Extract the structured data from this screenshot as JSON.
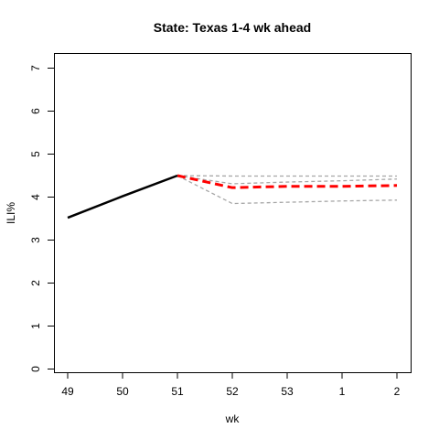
{
  "chart_data": {
    "type": "line",
    "title": "State: Texas 1-4 wk ahead",
    "xlabel": "wk",
    "ylabel": "ILI%",
    "x_categories": [
      "49",
      "50",
      "51",
      "52",
      "53",
      "1",
      "2"
    ],
    "yticks": [
      0,
      1,
      2,
      3,
      4,
      5,
      6,
      7
    ],
    "ylim": [
      0,
      7
    ],
    "grid": false,
    "series": [
      {
        "role": "observed",
        "color": "#000000",
        "style": "solid",
        "points": [
          [
            "49",
            3.52
          ],
          [
            "50",
            4.02
          ],
          [
            "51",
            4.5
          ]
        ]
      },
      {
        "role": "forecast-point",
        "color": "#ff0000",
        "style": "dashed",
        "points": [
          [
            "51",
            4.5
          ],
          [
            "52",
            4.22
          ],
          [
            "53",
            4.25
          ],
          [
            "1",
            4.25
          ],
          [
            "2",
            4.27
          ]
        ]
      },
      {
        "role": "forecast-upper",
        "color": "#a6a6a6",
        "style": "dashed",
        "points": [
          [
            "51",
            4.5
          ],
          [
            "52",
            4.49
          ],
          [
            "53",
            4.49
          ],
          [
            "1",
            4.49
          ],
          [
            "2",
            4.49
          ]
        ]
      },
      {
        "role": "forecast-mid",
        "color": "#a6a6a6",
        "style": "dashed",
        "points": [
          [
            "51",
            4.5
          ],
          [
            "52",
            4.31
          ],
          [
            "53",
            4.35
          ],
          [
            "1",
            4.38
          ],
          [
            "2",
            4.42
          ]
        ]
      },
      {
        "role": "forecast-lower",
        "color": "#a6a6a6",
        "style": "dashed",
        "points": [
          [
            "51",
            4.5
          ],
          [
            "52",
            3.85
          ],
          [
            "53",
            3.88
          ],
          [
            "1",
            3.91
          ],
          [
            "2",
            3.93
          ]
        ]
      }
    ]
  }
}
